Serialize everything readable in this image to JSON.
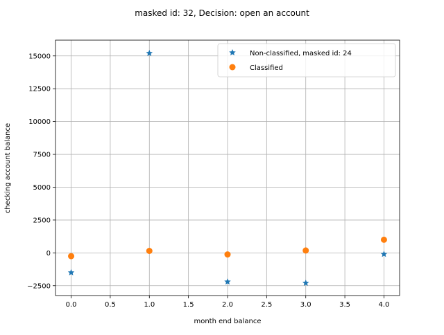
{
  "chart_data": {
    "type": "scatter",
    "title": "masked id: 32, Decision: open an account",
    "xlabel": "month end balance",
    "ylabel": "checking account balance",
    "xlim": [
      -0.2,
      4.2
    ],
    "ylim": [
      -3250,
      16200
    ],
    "xticks": [
      0.0,
      0.5,
      1.0,
      1.5,
      2.0,
      2.5,
      3.0,
      3.5,
      4.0
    ],
    "xtick_labels": [
      "0.0",
      "0.5",
      "1.0",
      "1.5",
      "2.0",
      "2.5",
      "3.0",
      "3.5",
      "4.0"
    ],
    "yticks": [
      -2500,
      0,
      2500,
      5000,
      7500,
      10000,
      12500,
      15000
    ],
    "ytick_labels": [
      "−2500",
      "0",
      "2500",
      "5000",
      "7500",
      "10000",
      "12500",
      "15000"
    ],
    "grid": true,
    "legend_position": "top-right",
    "series": [
      {
        "name": "Non-classified, masked id: 24",
        "marker": "star",
        "color": "#1f77b4",
        "x": [
          0,
          1,
          2,
          3,
          4
        ],
        "y": [
          -1500,
          15200,
          -2200,
          -2300,
          -100
        ]
      },
      {
        "name": "Classified",
        "marker": "circle",
        "color": "#ff7f0e",
        "x": [
          0,
          1,
          2,
          3,
          4
        ],
        "y": [
          -250,
          150,
          -120,
          180,
          1000
        ]
      }
    ]
  }
}
